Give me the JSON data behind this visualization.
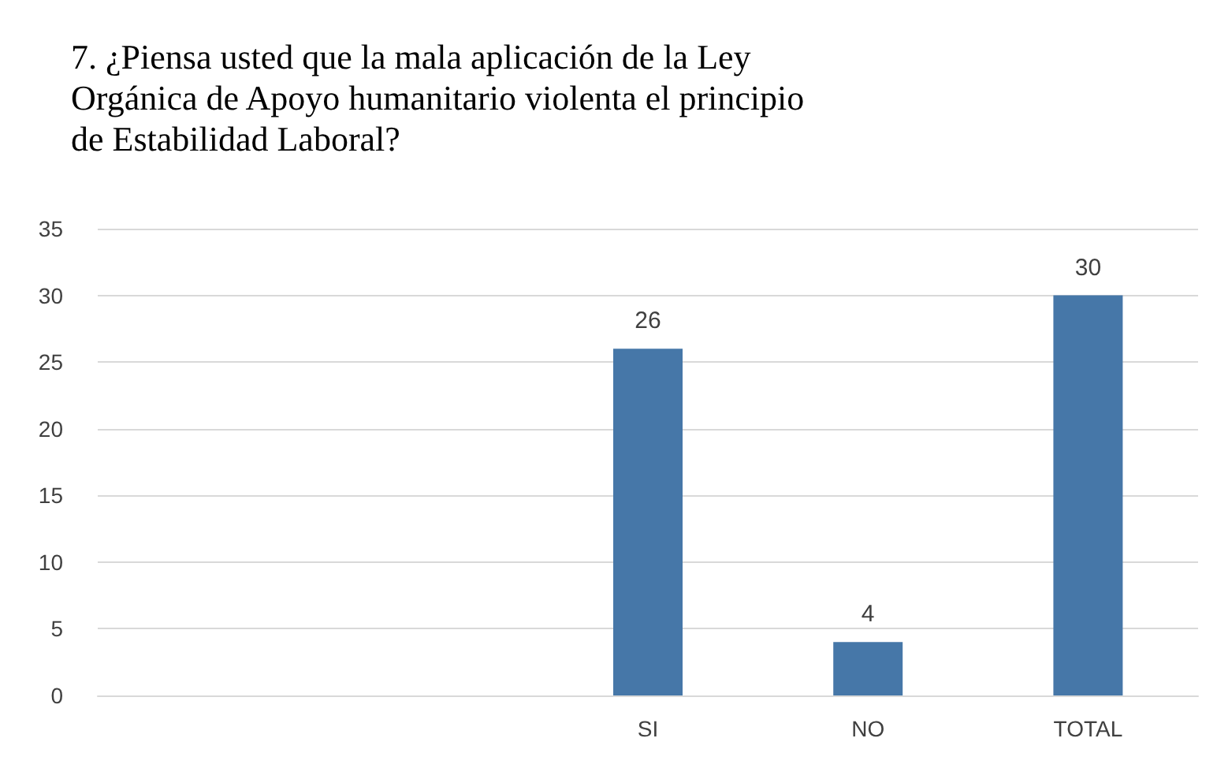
{
  "chart_data": {
    "type": "bar",
    "title": "7. ¿Piensa usted que la mala aplicación de la Ley\nOrgánica de Apoyo humanitario violenta el principio\nde Estabilidad Laboral?",
    "categories": [
      null,
      null,
      "SI",
      "NO",
      "TOTAL"
    ],
    "values": [
      null,
      null,
      26,
      4,
      30
    ],
    "color": "#4677a8",
    "ylim": [
      0,
      35
    ],
    "yticks": [
      0,
      5,
      10,
      15,
      20,
      25,
      30,
      35
    ],
    "grid": "y",
    "data_labels": true
  }
}
